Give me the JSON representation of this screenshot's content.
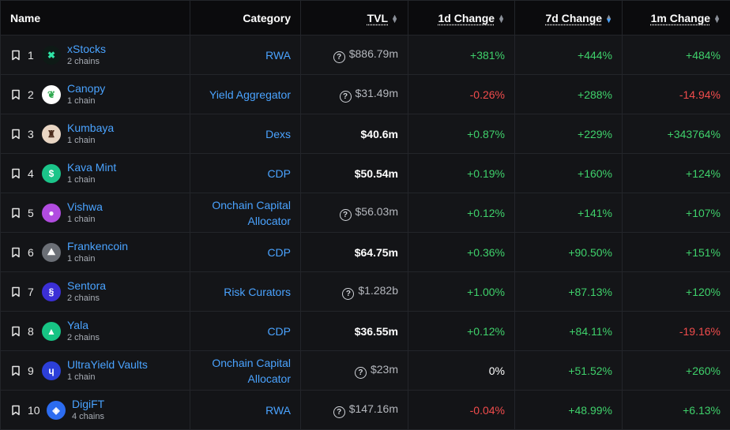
{
  "headers": {
    "name": "Name",
    "category": "Category",
    "tvl": "TVL",
    "change_1d": "1d Change",
    "change_7d": "7d Change",
    "change_1m": "1m Change"
  },
  "sort_active_column": "7d Change",
  "colors": {
    "link": "#4aa3ff",
    "positive": "#3fd16b",
    "negative": "#f14c4c"
  },
  "rows": [
    {
      "rank": "1",
      "name": "xStocks",
      "chains": "2 chains",
      "category": "RWA",
      "tvl": "$886.79m",
      "tvl_estimated": true,
      "d1": "+381%",
      "d1_sign": "pos",
      "d7": "+444%",
      "d7_sign": "pos",
      "m1": "+484%",
      "m1_sign": "pos",
      "logo_icon": "xstocks-logo"
    },
    {
      "rank": "2",
      "name": "Canopy",
      "chains": "1 chain",
      "category": "Yield Aggregator",
      "tvl": "$31.49m",
      "tvl_estimated": true,
      "d1": "-0.26%",
      "d1_sign": "neg",
      "d7": "+288%",
      "d7_sign": "pos",
      "m1": "-14.94%",
      "m1_sign": "neg",
      "logo_icon": "canopy-logo"
    },
    {
      "rank": "3",
      "name": "Kumbaya",
      "chains": "1 chain",
      "category": "Dexs",
      "tvl": "$40.6m",
      "tvl_estimated": false,
      "d1": "+0.87%",
      "d1_sign": "pos",
      "d7": "+229%",
      "d7_sign": "pos",
      "m1": "+343764%",
      "m1_sign": "pos",
      "logo_icon": "kumbaya-logo"
    },
    {
      "rank": "4",
      "name": "Kava Mint",
      "chains": "1 chain",
      "category": "CDP",
      "tvl": "$50.54m",
      "tvl_estimated": false,
      "d1": "+0.19%",
      "d1_sign": "pos",
      "d7": "+160%",
      "d7_sign": "pos",
      "m1": "+124%",
      "m1_sign": "pos",
      "logo_icon": "kava-mint-logo"
    },
    {
      "rank": "5",
      "name": "Vishwa",
      "chains": "1 chain",
      "category": "Onchain Capital Allocator",
      "category_l1": "Onchain Capital",
      "category_l2": "Allocator",
      "tvl": "$56.03m",
      "tvl_estimated": true,
      "d1": "+0.12%",
      "d1_sign": "pos",
      "d7": "+141%",
      "d7_sign": "pos",
      "m1": "+107%",
      "m1_sign": "pos",
      "logo_icon": "vishwa-logo"
    },
    {
      "rank": "6",
      "name": "Frankencoin",
      "chains": "1 chain",
      "category": "CDP",
      "tvl": "$64.75m",
      "tvl_estimated": false,
      "d1": "+0.36%",
      "d1_sign": "pos",
      "d7": "+90.50%",
      "d7_sign": "pos",
      "m1": "+151%",
      "m1_sign": "pos",
      "logo_icon": "frankencoin-logo"
    },
    {
      "rank": "7",
      "name": "Sentora",
      "chains": "2 chains",
      "category": "Risk Curators",
      "tvl": "$1.282b",
      "tvl_estimated": true,
      "d1": "+1.00%",
      "d1_sign": "pos",
      "d7": "+87.13%",
      "d7_sign": "pos",
      "m1": "+120%",
      "m1_sign": "pos",
      "logo_icon": "sentora-logo"
    },
    {
      "rank": "8",
      "name": "Yala",
      "chains": "2 chains",
      "category": "CDP",
      "tvl": "$36.55m",
      "tvl_estimated": false,
      "d1": "+0.12%",
      "d1_sign": "pos",
      "d7": "+84.11%",
      "d7_sign": "pos",
      "m1": "-19.16%",
      "m1_sign": "neg",
      "logo_icon": "yala-logo"
    },
    {
      "rank": "9",
      "name": "UltraYield Vaults",
      "chains": "1 chain",
      "category": "Onchain Capital Allocator",
      "category_l1": "Onchain Capital",
      "category_l2": "Allocator",
      "tvl": "$23m",
      "tvl_estimated": true,
      "d1": "0%",
      "d1_sign": "neutral",
      "d7": "+51.52%",
      "d7_sign": "pos",
      "m1": "+260%",
      "m1_sign": "pos",
      "logo_icon": "ultrayield-logo"
    },
    {
      "rank": "10",
      "name": "DigiFT",
      "chains": "4 chains",
      "category": "RWA",
      "tvl": "$147.16m",
      "tvl_estimated": true,
      "d1": "-0.04%",
      "d1_sign": "neg",
      "d7": "+48.99%",
      "d7_sign": "pos",
      "m1": "+6.13%",
      "m1_sign": "pos",
      "logo_icon": "digift-logo"
    }
  ]
}
